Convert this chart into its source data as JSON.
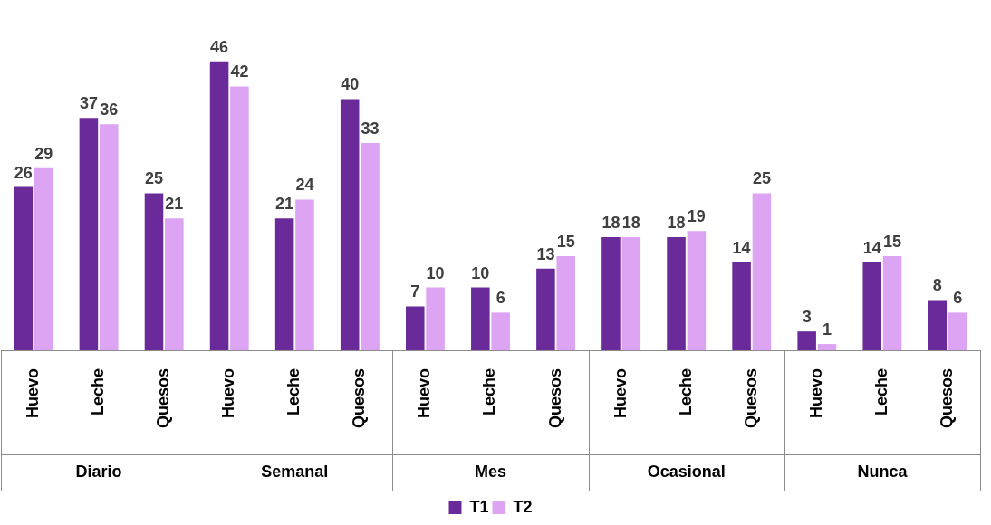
{
  "chart_data": {
    "type": "bar",
    "categories": [
      "Huevo",
      "Leche",
      "Quesos",
      "Huevo",
      "Leche",
      "Quesos",
      "Huevo",
      "Leche",
      "Quesos",
      "Huevo",
      "Leche",
      "Quesos",
      "Huevo",
      "Leche",
      "Quesos"
    ],
    "series": [
      {
        "name": "T1",
        "color": "#6b2a9a",
        "values": [
          26,
          37,
          25,
          46,
          21,
          40,
          7,
          10,
          13,
          18,
          18,
          14,
          3,
          14,
          8
        ]
      },
      {
        "name": "T2",
        "color": "#dca4f2",
        "values": [
          29,
          36,
          21,
          42,
          24,
          33,
          10,
          6,
          15,
          18,
          19,
          25,
          1,
          15,
          6
        ]
      }
    ],
    "annotations": [
      "Diario",
      "Semanal",
      "Mes",
      "Ocasional",
      "Nunca"
    ],
    "data_labels": true,
    "tick_labels": "x",
    "grid": false,
    "legend": "bottom"
  }
}
